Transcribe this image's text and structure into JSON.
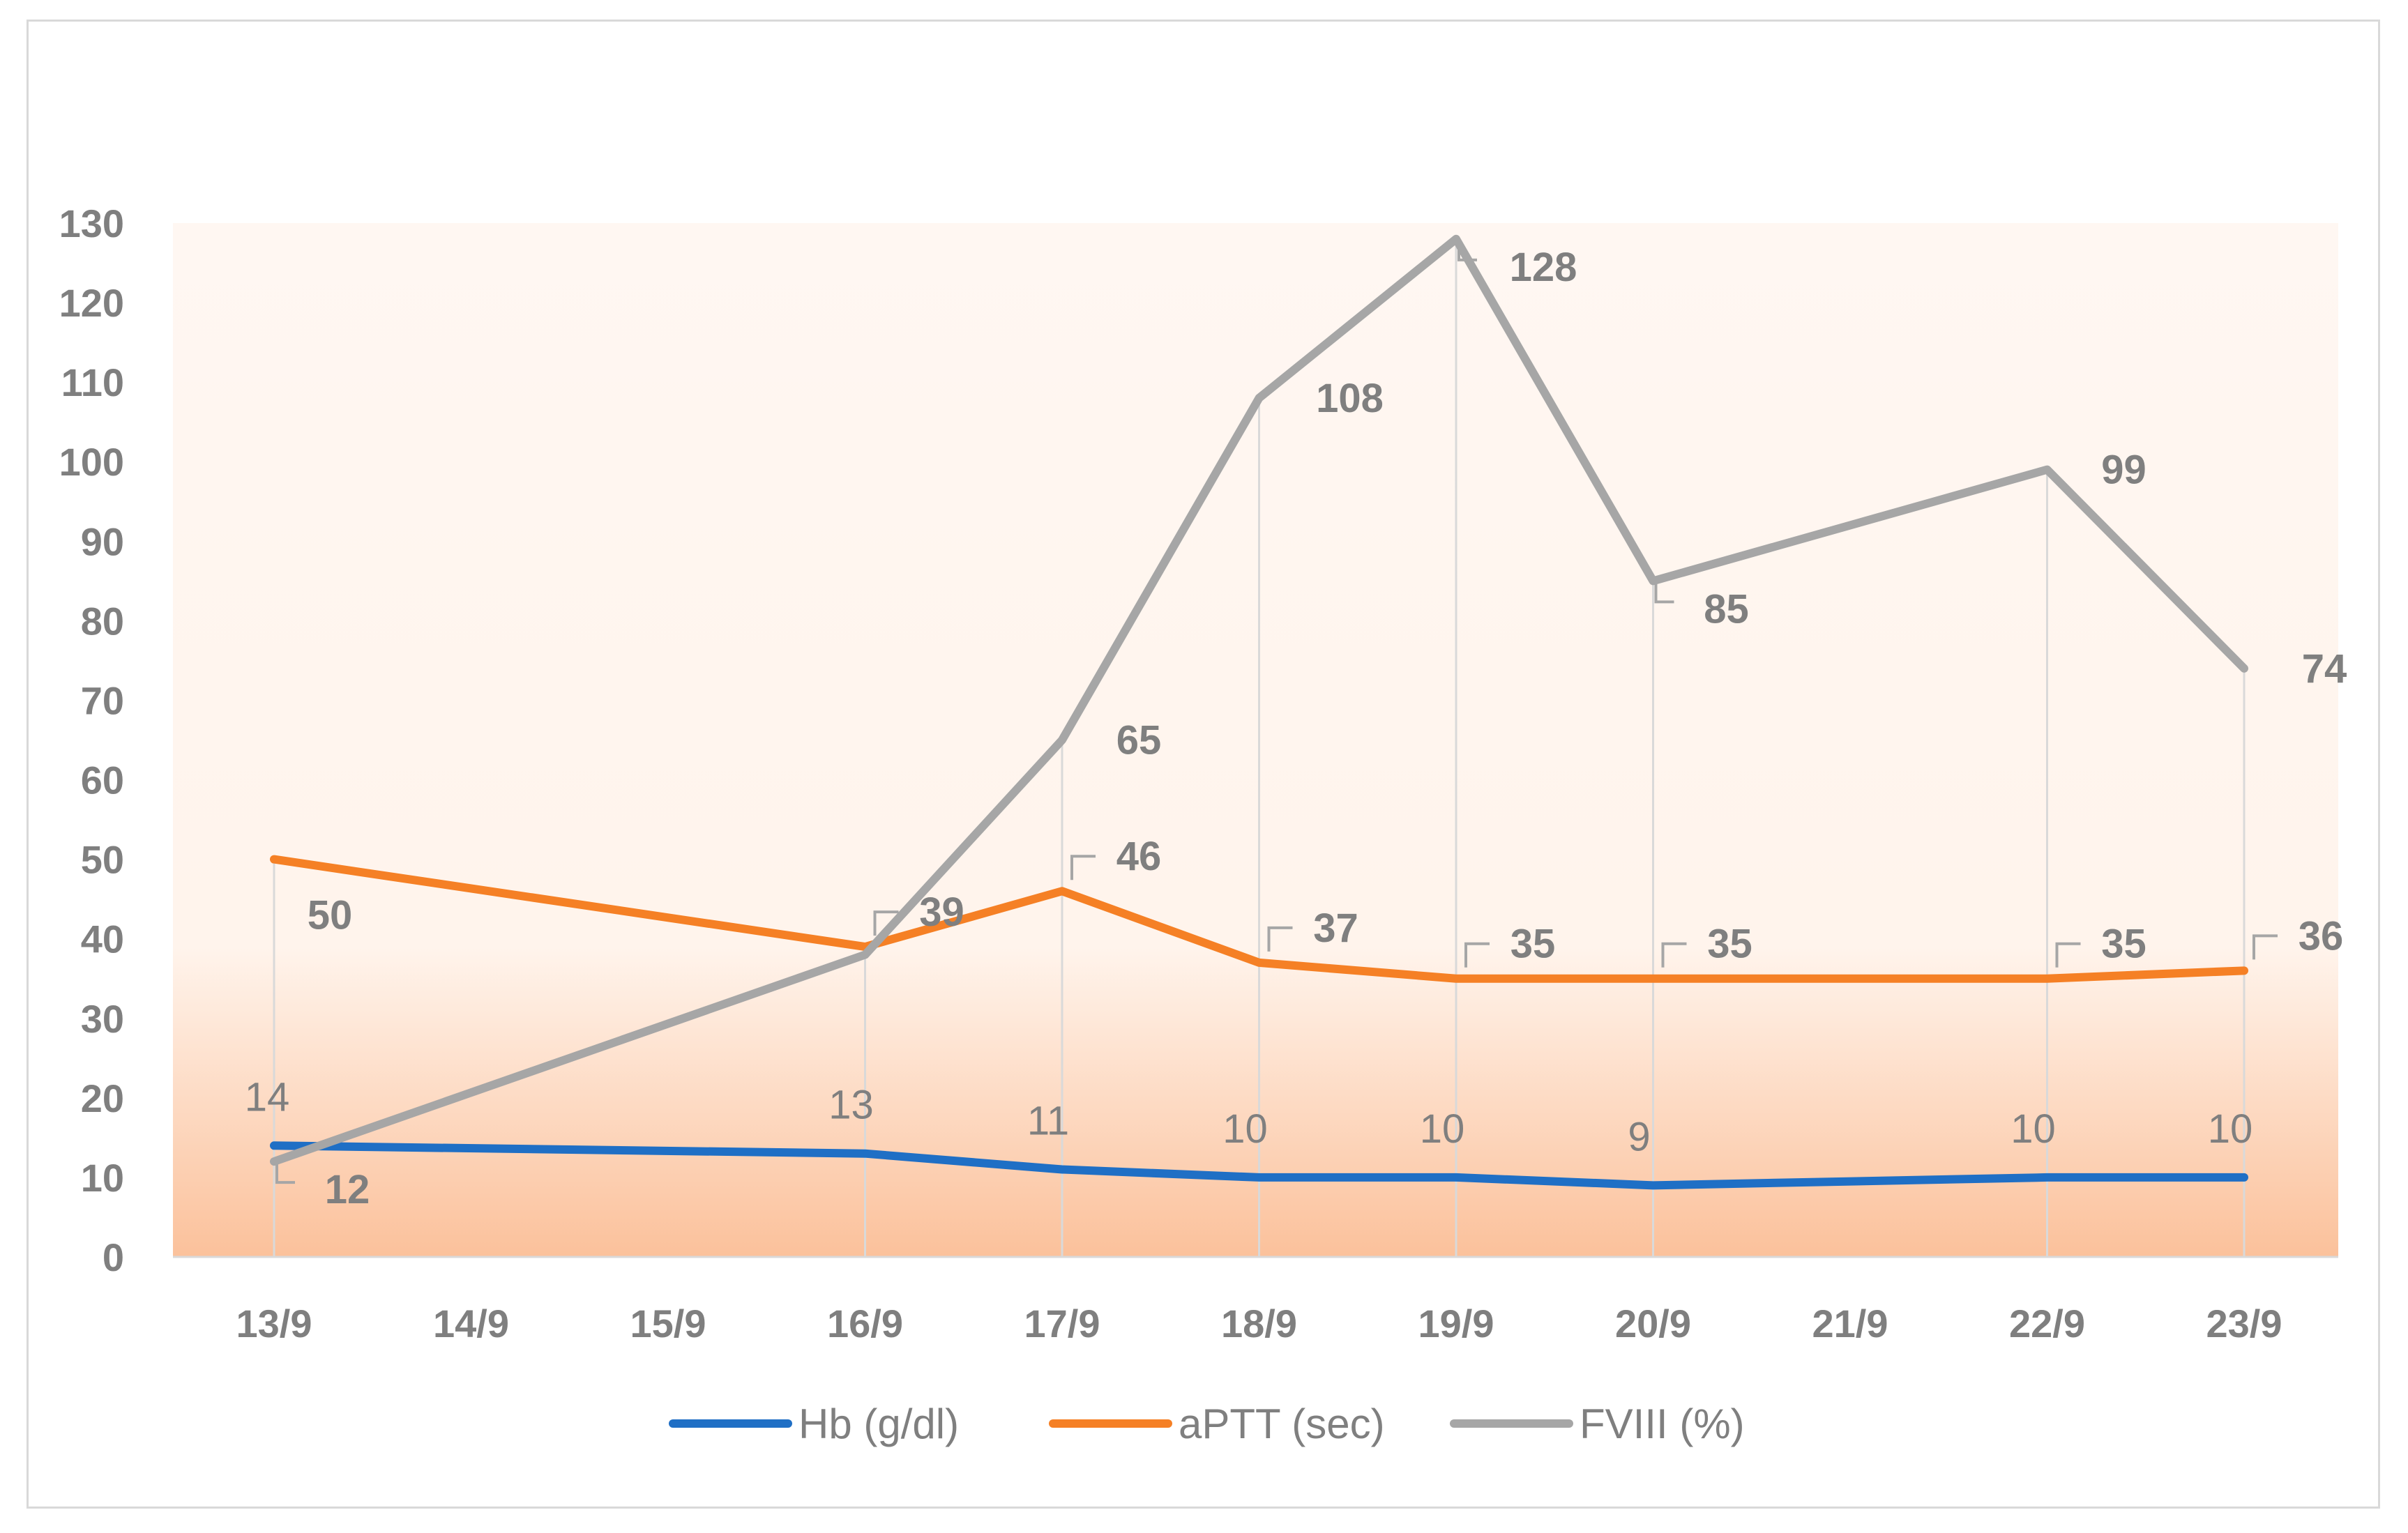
{
  "chart_data": {
    "type": "line",
    "categories": [
      "13/9",
      "14/9",
      "15/9",
      "16/9",
      "17/9",
      "18/9",
      "19/9",
      "20/9",
      "21/9",
      "22/9",
      "23/9"
    ],
    "ylim": [
      0,
      130
    ],
    "yticks": [
      "0",
      "10",
      "20",
      "30",
      "40",
      "50",
      "60",
      "70",
      "80",
      "90",
      "100",
      "110",
      "120",
      "130"
    ],
    "grid": "vertical drop lines at data points",
    "legend": "bottom",
    "series": [
      {
        "name": "Hb (g/dl)",
        "color": "#1f6fc5",
        "values": [
          14,
          null,
          null,
          13,
          11,
          10,
          10,
          9,
          null,
          10,
          10
        ]
      },
      {
        "name": "aPTT (sec)",
        "color": "#f58025",
        "values": [
          50,
          null,
          null,
          39,
          46,
          37,
          35,
          35,
          null,
          35,
          36
        ]
      },
      {
        "name": "FVIII (%)",
        "color": "#a6a6a6",
        "values": [
          12,
          null,
          null,
          38,
          65,
          108,
          128,
          85,
          null,
          99,
          74
        ]
      }
    ],
    "data_labels": {
      "Hb (g/dl)": [
        "14",
        "13",
        "11",
        "10",
        "10",
        "9",
        "10",
        "10"
      ],
      "aPTT (sec)": [
        "50",
        "39",
        "46",
        "37",
        "35",
        "35",
        "35",
        "36"
      ],
      "FVIII (%)": [
        "12",
        "65",
        "108",
        "128",
        "85",
        "99",
        "74"
      ]
    }
  }
}
